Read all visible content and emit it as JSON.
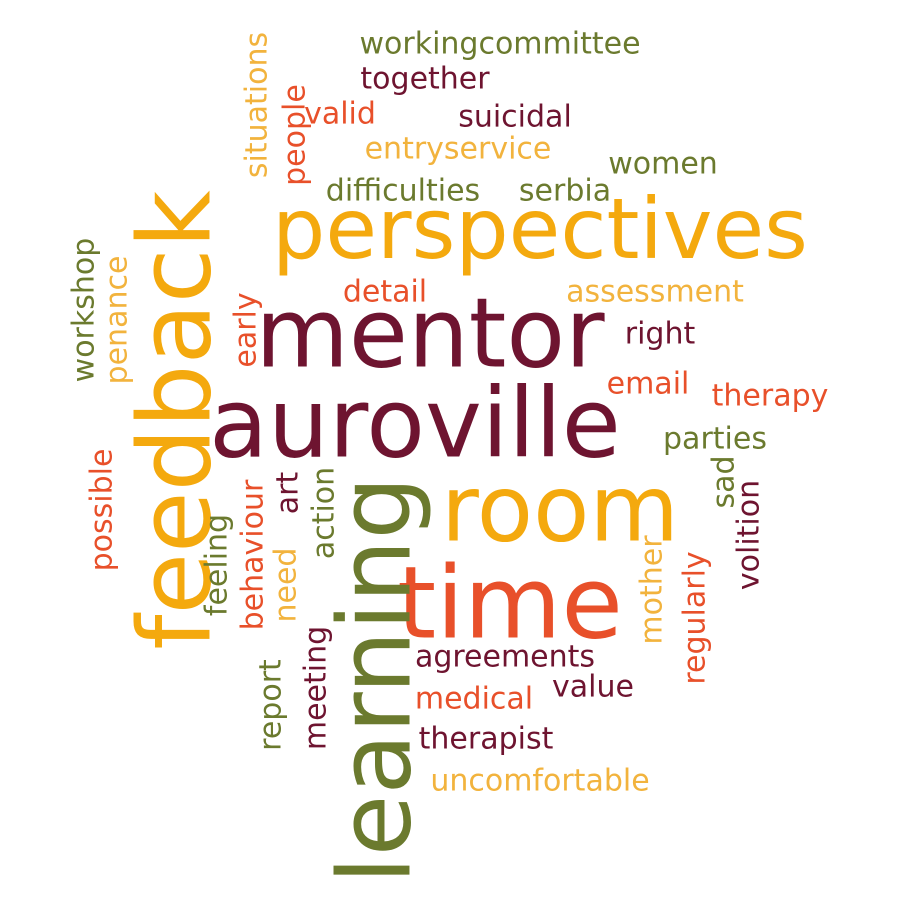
{
  "palette": {
    "gold": "#F4A90E",
    "olive": "#6B7A2E",
    "maroon": "#6E1430",
    "orange": "#E8502A",
    "sand": "#F2B33D"
  },
  "words": [
    {
      "key": "perspectives",
      "text": "perspectives",
      "color": "gold"
    },
    {
      "key": "mentor",
      "text": "mentor",
      "color": "maroon"
    },
    {
      "key": "auroville",
      "text": "auroville",
      "color": "maroon"
    },
    {
      "key": "feedback",
      "text": "feedback",
      "color": "gold"
    },
    {
      "key": "room",
      "text": "room",
      "color": "gold"
    },
    {
      "key": "time",
      "text": "time",
      "color": "orange"
    },
    {
      "key": "learning",
      "text": "learning",
      "color": "olive"
    },
    {
      "key": "workingcommittee",
      "text": "workingcommittee",
      "color": "olive"
    },
    {
      "key": "together",
      "text": "together",
      "color": "maroon"
    },
    {
      "key": "valid",
      "text": "valid",
      "color": "orange"
    },
    {
      "key": "suicidal",
      "text": "suicidal",
      "color": "maroon"
    },
    {
      "key": "entryservice",
      "text": "entryservice",
      "color": "sand"
    },
    {
      "key": "women",
      "text": "women",
      "color": "olive"
    },
    {
      "key": "difficulties",
      "text": "difficulties",
      "color": "olive"
    },
    {
      "key": "serbia",
      "text": "serbia",
      "color": "olive"
    },
    {
      "key": "situations",
      "text": "situations",
      "color": "sand"
    },
    {
      "key": "people",
      "text": "people",
      "color": "orange"
    },
    {
      "key": "detail",
      "text": "detail",
      "color": "orange"
    },
    {
      "key": "assessment",
      "text": "assessment",
      "color": "sand"
    },
    {
      "key": "right",
      "text": "right",
      "color": "maroon"
    },
    {
      "key": "email",
      "text": "email",
      "color": "orange"
    },
    {
      "key": "therapy",
      "text": "therapy",
      "color": "orange"
    },
    {
      "key": "parties",
      "text": "parties",
      "color": "olive"
    },
    {
      "key": "workshop",
      "text": "workshop",
      "color": "olive"
    },
    {
      "key": "penance",
      "text": "penance",
      "color": "sand"
    },
    {
      "key": "early",
      "text": "early",
      "color": "orange"
    },
    {
      "key": "possible",
      "text": "possible",
      "color": "orange"
    },
    {
      "key": "feeling",
      "text": "feeling",
      "color": "olive"
    },
    {
      "key": "behaviour",
      "text": "behaviour",
      "color": "orange"
    },
    {
      "key": "art",
      "text": "art",
      "color": "maroon"
    },
    {
      "key": "need",
      "text": "need",
      "color": "sand"
    },
    {
      "key": "action",
      "text": "action",
      "color": "olive"
    },
    {
      "key": "sad",
      "text": "sad",
      "color": "olive"
    },
    {
      "key": "volition",
      "text": "volition",
      "color": "maroon"
    },
    {
      "key": "mother",
      "text": "mother",
      "color": "sand"
    },
    {
      "key": "regularly",
      "text": "regularly",
      "color": "orange"
    },
    {
      "key": "agreements",
      "text": "agreements",
      "color": "maroon"
    },
    {
      "key": "value",
      "text": "value",
      "color": "maroon"
    },
    {
      "key": "medical",
      "text": "medical",
      "color": "orange"
    },
    {
      "key": "therapist",
      "text": "therapist",
      "color": "maroon"
    },
    {
      "key": "uncomfortable",
      "text": "uncomfortable",
      "color": "sand"
    },
    {
      "key": "report",
      "text": "report",
      "color": "olive"
    },
    {
      "key": "meeting",
      "text": "meeting",
      "color": "maroon"
    }
  ]
}
